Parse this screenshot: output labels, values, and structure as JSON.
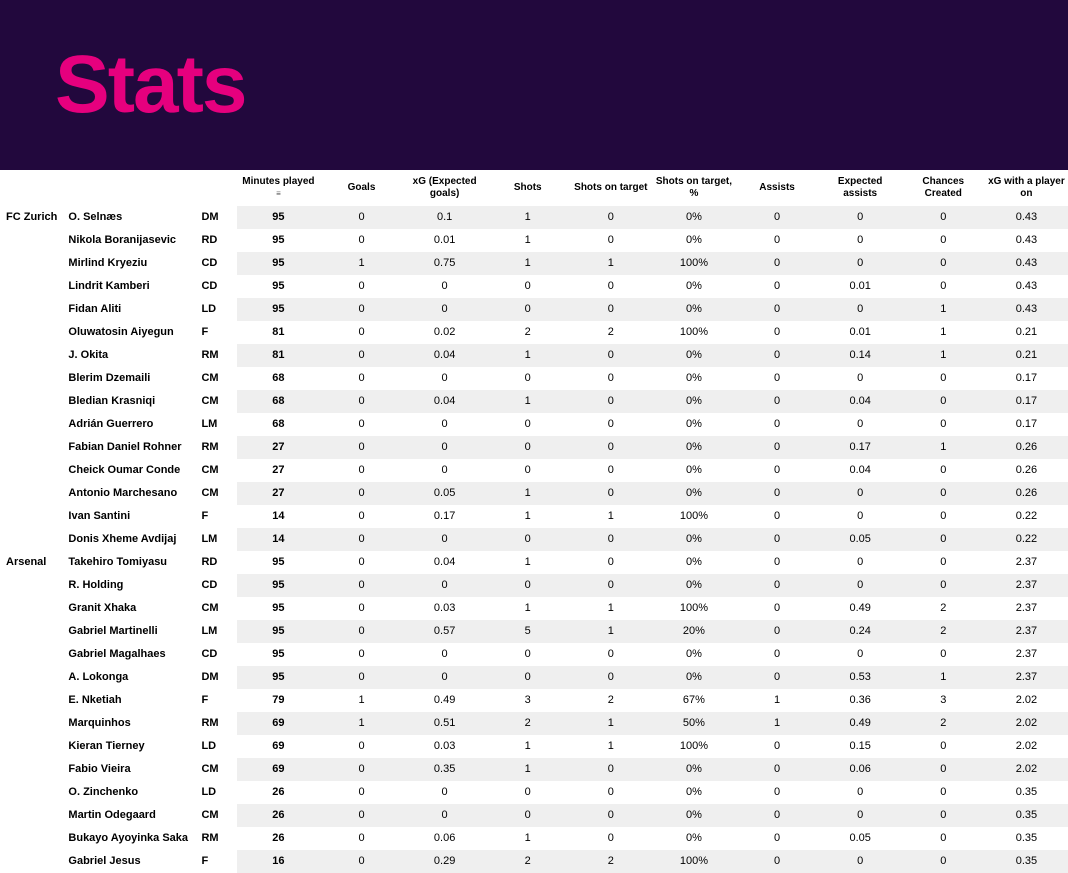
{
  "page_title": "Stats",
  "colors": {
    "banner_bg": "#22083d",
    "accent": "#e6007e",
    "row_stripe": "#efefef",
    "row_plain": "#ffffff",
    "text": "#000000"
  },
  "typography": {
    "title_fontsize": 82,
    "title_weight": 900,
    "header_fontsize": 10,
    "cell_fontsize": 11,
    "font_family": "Arial"
  },
  "table": {
    "sorted_column_index": 0,
    "columns": [
      "Minutes played",
      "Goals",
      "xG (Expected goals)",
      "Shots",
      "Shots on target",
      "Shots on target, %",
      "Assists",
      "Expected assists",
      "Chances Created",
      "xG with a player on"
    ],
    "teams": [
      {
        "name": "FC Zurich",
        "players": [
          {
            "name": "O. Selnæs",
            "pos": "DM",
            "stats": [
              "95",
              "0",
              "0.1",
              "1",
              "0",
              "0%",
              "0",
              "0",
              "0",
              "0.43"
            ]
          },
          {
            "name": "Nikola Boranijasevic",
            "pos": "RD",
            "stats": [
              "95",
              "0",
              "0.01",
              "1",
              "0",
              "0%",
              "0",
              "0",
              "0",
              "0.43"
            ]
          },
          {
            "name": "Mirlind Kryeziu",
            "pos": "CD",
            "stats": [
              "95",
              "1",
              "0.75",
              "1",
              "1",
              "100%",
              "0",
              "0",
              "0",
              "0.43"
            ]
          },
          {
            "name": "Lindrit Kamberi",
            "pos": "CD",
            "stats": [
              "95",
              "0",
              "0",
              "0",
              "0",
              "0%",
              "0",
              "0.01",
              "0",
              "0.43"
            ]
          },
          {
            "name": "Fidan Aliti",
            "pos": "LD",
            "stats": [
              "95",
              "0",
              "0",
              "0",
              "0",
              "0%",
              "0",
              "0",
              "1",
              "0.43"
            ]
          },
          {
            "name": "Oluwatosin Aiyegun",
            "pos": "F",
            "stats": [
              "81",
              "0",
              "0.02",
              "2",
              "2",
              "100%",
              "0",
              "0.01",
              "1",
              "0.21"
            ]
          },
          {
            "name": "J. Okita",
            "pos": "RM",
            "stats": [
              "81",
              "0",
              "0.04",
              "1",
              "0",
              "0%",
              "0",
              "0.14",
              "1",
              "0.21"
            ]
          },
          {
            "name": "Blerim Dzemaili",
            "pos": "CM",
            "stats": [
              "68",
              "0",
              "0",
              "0",
              "0",
              "0%",
              "0",
              "0",
              "0",
              "0.17"
            ]
          },
          {
            "name": "Bledian Krasniqi",
            "pos": "CM",
            "stats": [
              "68",
              "0",
              "0.04",
              "1",
              "0",
              "0%",
              "0",
              "0.04",
              "0",
              "0.17"
            ]
          },
          {
            "name": "Adrián Guerrero",
            "pos": "LM",
            "stats": [
              "68",
              "0",
              "0",
              "0",
              "0",
              "0%",
              "0",
              "0",
              "0",
              "0.17"
            ]
          },
          {
            "name": "Fabian Daniel Rohner",
            "pos": "RM",
            "stats": [
              "27",
              "0",
              "0",
              "0",
              "0",
              "0%",
              "0",
              "0.17",
              "1",
              "0.26"
            ]
          },
          {
            "name": "Cheick Oumar Conde",
            "pos": "CM",
            "stats": [
              "27",
              "0",
              "0",
              "0",
              "0",
              "0%",
              "0",
              "0.04",
              "0",
              "0.26"
            ]
          },
          {
            "name": "Antonio Marchesano",
            "pos": "CM",
            "stats": [
              "27",
              "0",
              "0.05",
              "1",
              "0",
              "0%",
              "0",
              "0",
              "0",
              "0.26"
            ]
          },
          {
            "name": "Ivan Santini",
            "pos": "F",
            "stats": [
              "14",
              "0",
              "0.17",
              "1",
              "1",
              "100%",
              "0",
              "0",
              "0",
              "0.22"
            ]
          },
          {
            "name": "Donis Xheme Avdijaj",
            "pos": "LM",
            "stats": [
              "14",
              "0",
              "0",
              "0",
              "0",
              "0%",
              "0",
              "0.05",
              "0",
              "0.22"
            ]
          }
        ]
      },
      {
        "name": "Arsenal",
        "players": [
          {
            "name": "Takehiro Tomiyasu",
            "pos": "RD",
            "stats": [
              "95",
              "0",
              "0.04",
              "1",
              "0",
              "0%",
              "0",
              "0",
              "0",
              "2.37"
            ]
          },
          {
            "name": "R. Holding",
            "pos": "CD",
            "stats": [
              "95",
              "0",
              "0",
              "0",
              "0",
              "0%",
              "0",
              "0",
              "0",
              "2.37"
            ]
          },
          {
            "name": "Granit Xhaka",
            "pos": "CM",
            "stats": [
              "95",
              "0",
              "0.03",
              "1",
              "1",
              "100%",
              "0",
              "0.49",
              "2",
              "2.37"
            ]
          },
          {
            "name": "Gabriel Martinelli",
            "pos": "LM",
            "stats": [
              "95",
              "0",
              "0.57",
              "5",
              "1",
              "20%",
              "0",
              "0.24",
              "2",
              "2.37"
            ]
          },
          {
            "name": "Gabriel Magalhaes",
            "pos": "CD",
            "stats": [
              "95",
              "0",
              "0",
              "0",
              "0",
              "0%",
              "0",
              "0",
              "0",
              "2.37"
            ]
          },
          {
            "name": "A. Lokonga",
            "pos": "DM",
            "stats": [
              "95",
              "0",
              "0",
              "0",
              "0",
              "0%",
              "0",
              "0.53",
              "1",
              "2.37"
            ]
          },
          {
            "name": "E. Nketiah",
            "pos": "F",
            "stats": [
              "79",
              "1",
              "0.49",
              "3",
              "2",
              "67%",
              "1",
              "0.36",
              "3",
              "2.02"
            ]
          },
          {
            "name": "Marquinhos",
            "pos": "RM",
            "stats": [
              "69",
              "1",
              "0.51",
              "2",
              "1",
              "50%",
              "1",
              "0.49",
              "2",
              "2.02"
            ]
          },
          {
            "name": "Kieran Tierney",
            "pos": "LD",
            "stats": [
              "69",
              "0",
              "0.03",
              "1",
              "1",
              "100%",
              "0",
              "0.15",
              "0",
              "2.02"
            ]
          },
          {
            "name": "Fabio Vieira",
            "pos": "CM",
            "stats": [
              "69",
              "0",
              "0.35",
              "1",
              "0",
              "0%",
              "0",
              "0.06",
              "0",
              "2.02"
            ]
          },
          {
            "name": "O. Zinchenko",
            "pos": "LD",
            "stats": [
              "26",
              "0",
              "0",
              "0",
              "0",
              "0%",
              "0",
              "0",
              "0",
              "0.35"
            ]
          },
          {
            "name": "Martin Odegaard",
            "pos": "CM",
            "stats": [
              "26",
              "0",
              "0",
              "0",
              "0",
              "0%",
              "0",
              "0",
              "0",
              "0.35"
            ]
          },
          {
            "name": "Bukayo Ayoyinka Saka",
            "pos": "RM",
            "stats": [
              "26",
              "0",
              "0.06",
              "1",
              "0",
              "0%",
              "0",
              "0.05",
              "0",
              "0.35"
            ]
          },
          {
            "name": "Gabriel Jesus",
            "pos": "F",
            "stats": [
              "16",
              "0",
              "0.29",
              "2",
              "2",
              "100%",
              "0",
              "0",
              "0",
              "0.35"
            ]
          }
        ]
      }
    ]
  }
}
